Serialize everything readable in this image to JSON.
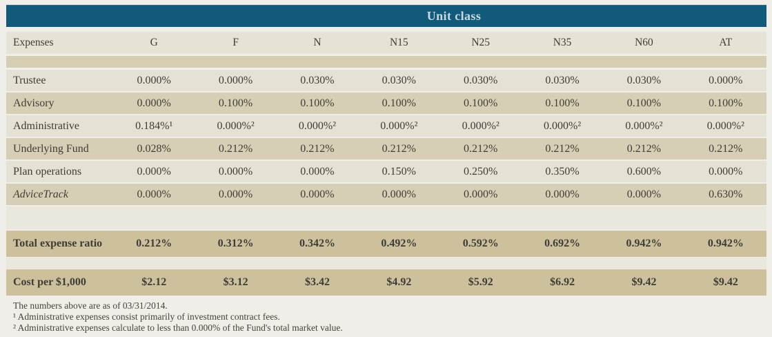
{
  "colors": {
    "header_bg": "#115a7b",
    "header_text": "#c9dade",
    "row_light": "#e5e1d4",
    "row_tan": "#d7cfb5",
    "row_total": "#cdc09c",
    "text": "#3f3c35"
  },
  "table": {
    "title": "Unit class",
    "columns": [
      "Expenses",
      "G",
      "F",
      "N",
      "N15",
      "N25",
      "N35",
      "N60",
      "AT"
    ],
    "expense_rows": [
      {
        "label": "Trustee",
        "italic": false,
        "values": [
          "0.000%",
          "0.000%",
          "0.030%",
          "0.030%",
          "0.030%",
          "0.030%",
          "0.030%",
          "0.000%"
        ]
      },
      {
        "label": "Advisory",
        "italic": false,
        "values": [
          "0.000%",
          "0.100%",
          "0.100%",
          "0.100%",
          "0.100%",
          "0.100%",
          "0.100%",
          "0.100%"
        ]
      },
      {
        "label": "Administrative",
        "italic": false,
        "values": [
          "0.184%¹",
          "0.000%²",
          "0.000%²",
          "0.000%²",
          "0.000%²",
          "0.000%²",
          "0.000%²",
          "0.000%²"
        ]
      },
      {
        "label": "Underlying Fund",
        "italic": false,
        "values": [
          "0.028%",
          "0.212%",
          "0.212%",
          "0.212%",
          "0.212%",
          "0.212%",
          "0.212%",
          "0.212%"
        ]
      },
      {
        "label": "Plan operations",
        "italic": false,
        "values": [
          "0.000%",
          "0.000%",
          "0.000%",
          "0.150%",
          "0.250%",
          "0.350%",
          "0.600%",
          "0.000%"
        ]
      },
      {
        "label": "AdviceTrack",
        "italic": true,
        "values": [
          "0.000%",
          "0.000%",
          "0.000%",
          "0.000%",
          "0.000%",
          "0.000%",
          "0.000%",
          "0.630%"
        ]
      }
    ],
    "total_row": {
      "label": "Total expense ratio",
      "values": [
        "0.212%",
        "0.312%",
        "0.342%",
        "0.492%",
        "0.592%",
        "0.692%",
        "0.942%",
        "0.942%"
      ]
    },
    "cost_row": {
      "label": "Cost per $1,000",
      "values": [
        "$2.12",
        "$3.12",
        "$3.42",
        "$4.92",
        "$5.92",
        "$6.92",
        "$9.42",
        "$9.42"
      ]
    }
  },
  "footnotes": [
    "The numbers above are as of 03/31/2014.",
    "¹ Administrative expenses consist primarily of investment contract fees.",
    "² Administrative expenses calculate to less than 0.000% of the Fund's total market value."
  ]
}
